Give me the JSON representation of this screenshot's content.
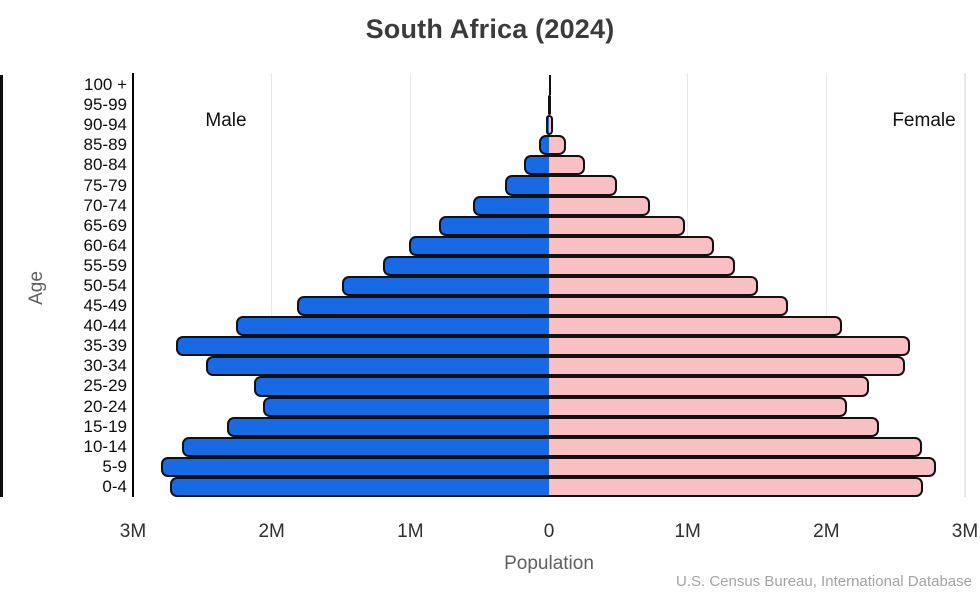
{
  "title": "South Africa (2024)",
  "labels": {
    "male_annotation": "Male",
    "female_annotation": "Female",
    "y_axis": "Age",
    "x_axis": "Population",
    "source": "U.S. Census Bureau, International Database"
  },
  "colors": {
    "male_bar": "#1769e4",
    "female_bar": "#f9c0c4",
    "bar_outline": "#14100f",
    "gridline": "#e8e8e8",
    "axis_line": "#000000",
    "title_text": "#3b3b3b",
    "tick_text": "#2f2f2f",
    "muted_text": "#5f5f5f",
    "source_text": "#a3a3a3"
  },
  "chart_data": {
    "type": "bar",
    "subtype": "population_pyramid",
    "title": "South Africa (2024)",
    "xlabel": "Population",
    "ylabel": "Age",
    "unit": "millions of people",
    "xlim_millions": [
      -3,
      3
    ],
    "grid": "vertical gridlines at each 1M step",
    "legend_position": "in-plot text annotations: Male upper-left, Female upper-right",
    "categories_top_to_bottom": [
      "100 +",
      "95-99",
      "90-94",
      "85-89",
      "80-84",
      "75-79",
      "70-74",
      "65-69",
      "60-64",
      "55-59",
      "50-54",
      "45-49",
      "40-44",
      "35-39",
      "30-34",
      "25-29",
      "20-24",
      "15-19",
      "10-14",
      "5-9",
      "0-4"
    ],
    "x_ticks": [
      {
        "label": "3M",
        "value_millions": -3
      },
      {
        "label": "2M",
        "value_millions": -2
      },
      {
        "label": "1M",
        "value_millions": -1
      },
      {
        "label": "0",
        "value_millions": 0
      },
      {
        "label": "1M",
        "value_millions": 1
      },
      {
        "label": "2M",
        "value_millions": 2
      },
      {
        "label": "3M",
        "value_millions": 3
      }
    ],
    "series": [
      {
        "name": "Male",
        "side": "left",
        "values_millions": [
          0.001,
          0.005,
          0.022,
          0.07,
          0.18,
          0.32,
          0.55,
          0.79,
          1.01,
          1.2,
          1.49,
          1.82,
          2.26,
          2.69,
          2.47,
          2.13,
          2.06,
          2.32,
          2.65,
          2.8,
          2.73
        ]
      },
      {
        "name": "Female",
        "side": "right",
        "values_millions": [
          0.002,
          0.008,
          0.029,
          0.12,
          0.26,
          0.49,
          0.73,
          0.98,
          1.19,
          1.34,
          1.51,
          1.72,
          2.11,
          2.6,
          2.57,
          2.31,
          2.15,
          2.38,
          2.69,
          2.79,
          2.7
        ]
      }
    ]
  }
}
